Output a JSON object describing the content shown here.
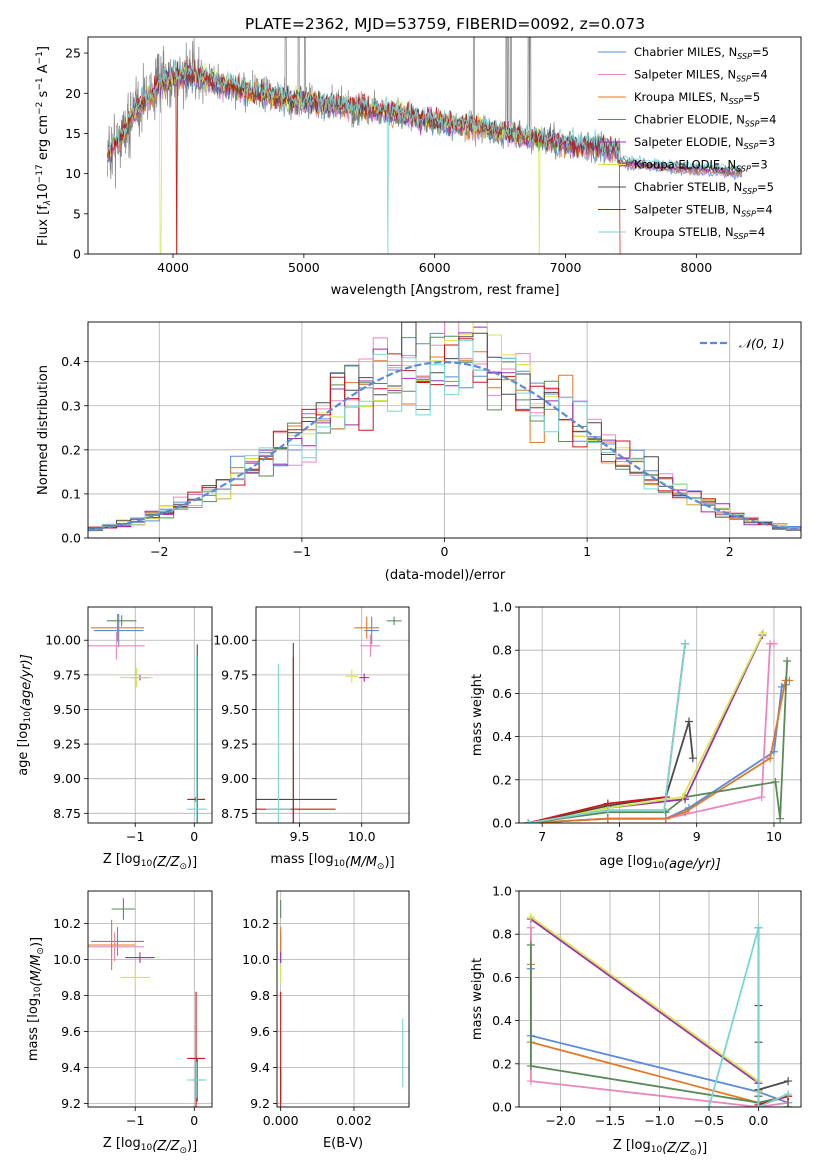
{
  "figure_title": "PLATE=2362, MJD=53759, FIBERID=0092, z=0.073",
  "colors": {
    "Chabrier MILES": "#5b8bd6",
    "Salpeter MILES": "#e888c0",
    "Kroupa MILES": "#e07828",
    "Chabrier ELODIE": "#5a8a5a",
    "Salpeter ELODIE": "#9a2fb0",
    "Kroupa ELODIE": "#d6e64a",
    "Chabrier STELIB": "#4a4a4a",
    "Salpeter STELIB": "#c81818",
    "Kroupa STELIB": "#7ad6d6",
    "data": "#808080",
    "normal": "#5b8bd6"
  },
  "chart_data": [
    {
      "id": "spectrum",
      "type": "line",
      "xlabel": "wavelength [Angstrom, rest frame]",
      "ylabel_main": "Flux [f",
      "ylabel_sub": "λ",
      "ylabel_rest": "10",
      "ylabel_exp": "−17",
      "ylabel_unit": " erg cm",
      "ylabel_unit_exp": "−2",
      "ylabel_s": " s",
      "ylabel_s_exp": "−1",
      "ylabel_A": " A",
      "ylabel_A_exp": "−1",
      "ylabel_end": "]",
      "xlim": [
        3350,
        8800
      ],
      "ylim": [
        0,
        27
      ],
      "xticks": [
        4000,
        5000,
        6000,
        7000,
        8000
      ],
      "yticks": [
        0,
        5,
        10,
        15,
        20,
        25
      ],
      "legend": [
        {
          "name": "Chabrier MILES",
          "nssp": "5"
        },
        {
          "name": "Salpeter MILES",
          "nssp": "4"
        },
        {
          "name": "Kroupa MILES",
          "nssp": "5"
        },
        {
          "name": "Chabrier ELODIE",
          "nssp": "4"
        },
        {
          "name": "Salpeter ELODIE",
          "nssp": "3"
        },
        {
          "name": "Kroupa ELODIE",
          "nssp": "3"
        },
        {
          "name": "Chabrier STELIB",
          "nssp": "5"
        },
        {
          "name": "Salpeter STELIB",
          "nssp": "4"
        },
        {
          "name": "Kroupa STELIB",
          "nssp": "4"
        }
      ],
      "legend_nssp_label": "N",
      "legend_nssp_sub": "SSP",
      "legend_location": "top-right",
      "continuum_x": [
        3500,
        3600,
        3700,
        3800,
        3900,
        4000,
        4100,
        4200,
        4300,
        4400,
        4500,
        4700,
        4900,
        5100,
        5300,
        5500,
        5700,
        5900,
        6100,
        6300,
        6500,
        6700,
        6900,
        7100,
        7300,
        7500,
        7700,
        7900,
        8100,
        8300
      ],
      "continuum_y": [
        12.5,
        14.5,
        17.5,
        19.5,
        21,
        22,
        22.3,
        22,
        21.5,
        21,
        20.5,
        19.8,
        19,
        18.8,
        18.3,
        18,
        17.5,
        16.8,
        16.2,
        15.8,
        15.2,
        14.5,
        14,
        13.5,
        13.2,
        12.8,
        12.5,
        12.2,
        12,
        11.8
      ],
      "data_x_range": [
        3500,
        7420
      ],
      "model_x_range": [
        3500,
        8350
      ],
      "dropouts": [
        {
          "series": "Kroupa ELODIE",
          "x": 3905
        },
        {
          "series": "Salpeter STELIB",
          "x": 4030
        },
        {
          "series": "Kroupa MILES",
          "x": 4030
        },
        {
          "series": "Kroupa STELIB",
          "x": 5640
        },
        {
          "series": "Kroupa ELODIE",
          "x": 6800
        },
        {
          "series": "Salpeter STELIB",
          "x": 7420
        }
      ],
      "emission_lines": [
        4861,
        4959,
        5007,
        6300,
        6548,
        6563,
        6583,
        6717,
        6731
      ]
    },
    {
      "id": "residuals",
      "type": "line",
      "xlabel": "(data-model)/error",
      "ylabel": "Normed distribution",
      "xlim": [
        -2.5,
        2.5
      ],
      "ylim": [
        0,
        0.49
      ],
      "xticks": [
        -2,
        -1,
        0,
        1,
        2
      ],
      "yticks": [
        0.0,
        0.1,
        0.2,
        0.3,
        0.4
      ],
      "bin_width": 0.1,
      "legend_label": "𝒩(0, 1)",
      "legend_location": "top-right",
      "normal": {
        "mean": 0,
        "sigma": 1
      }
    },
    {
      "id": "age_vs_Z",
      "type": "scatter",
      "xlabel": "Z [log",
      "xlabel_sub": "10",
      "xlabel_rest": "(Z/Z",
      "xlabel_odot": "⊙",
      "xlabel_end": ")]",
      "ylabel": "age  [log",
      "ylabel_sub": "10",
      "ylabel_rest": "(age/yr)]",
      "xlim": [
        -1.8,
        0.3
      ],
      "ylim": [
        8.68,
        10.24
      ],
      "xticks": [
        -1,
        0
      ],
      "yticks": [
        8.75,
        9.0,
        9.25,
        9.5,
        9.75,
        10.0
      ],
      "points": [
        {
          "series": "Chabrier MILES",
          "x": -1.28,
          "y": 10.07,
          "xerr": 0.42,
          "yerr": 0.12
        },
        {
          "series": "Salpeter MILES",
          "x": -1.32,
          "y": 9.96,
          "xerr": 0.48,
          "yerr": 0.1
        },
        {
          "series": "Kroupa MILES",
          "x": -1.3,
          "y": 10.09,
          "xerr": 0.45,
          "yerr": 0.1
        },
        {
          "series": "Chabrier ELODIE",
          "x": -1.23,
          "y": 10.14,
          "xerr": 0.25,
          "yerr": 0.04
        },
        {
          "series": "Salpeter ELODIE",
          "x": -0.92,
          "y": 9.73,
          "xerr": 0.15,
          "yerr": 0.02
        },
        {
          "series": "Kroupa ELODIE",
          "x": -0.98,
          "y": 9.73,
          "xerr": 0.28,
          "yerr": 0.07
        },
        {
          "series": "Chabrier STELIB",
          "x": 0.05,
          "y": 8.85,
          "xerr": 0.13,
          "yerr": 1.12
        },
        {
          "series": "Salpeter STELIB",
          "x": 0.03,
          "y": 8.85,
          "xerr": 0.15,
          "yerr": 0.02
        },
        {
          "series": "Kroupa STELIB",
          "x": 0.04,
          "y": 8.78,
          "xerr": 0.17,
          "yerr": 1.1
        }
      ]
    },
    {
      "id": "age_vs_mass",
      "type": "scatter",
      "xlabel": "mass [log",
      "xlabel_sub": "10",
      "xlabel_rest": "(M/M",
      "xlabel_odot": "⊙",
      "xlabel_end": ")]",
      "xlim": [
        9.15,
        10.38
      ],
      "ylim": [
        8.68,
        10.24
      ],
      "xticks": [
        9.5,
        10.0
      ],
      "yticks": [
        8.75,
        9.0,
        9.25,
        9.5,
        9.75,
        10.0
      ],
      "points": [
        {
          "series": "Chabrier MILES",
          "x": 10.08,
          "y": 10.07,
          "xerr": 0.06,
          "yerr": 0.1
        },
        {
          "series": "Salpeter MILES",
          "x": 10.07,
          "y": 9.96,
          "xerr": 0.08,
          "yerr": 0.08
        },
        {
          "series": "Kroupa MILES",
          "x": 10.04,
          "y": 10.09,
          "xerr": 0.1,
          "yerr": 0.08
        },
        {
          "series": "Chabrier ELODIE",
          "x": 10.26,
          "y": 10.14,
          "xerr": 0.06,
          "yerr": 0.03
        },
        {
          "series": "Salpeter ELODIE",
          "x": 10.02,
          "y": 9.73,
          "xerr": 0.04,
          "yerr": 0.03
        },
        {
          "series": "Kroupa ELODIE",
          "x": 9.92,
          "y": 9.74,
          "xerr": 0.05,
          "yerr": 0.05
        },
        {
          "series": "Chabrier STELIB",
          "x": 9.45,
          "y": 8.85,
          "xerr": 0.35,
          "yerr": 1.13
        },
        {
          "series": "Salpeter STELIB",
          "x": 9.45,
          "y": 8.78,
          "xerr": 0.34,
          "yerr": 1.1
        },
        {
          "series": "Kroupa STELIB",
          "x": 9.33,
          "y": 8.78,
          "xerr": 0.1,
          "yerr": 1.05
        }
      ]
    },
    {
      "id": "weight_vs_age",
      "type": "line",
      "xlabel": "age  [log",
      "xlabel_sub": "10",
      "xlabel_rest": "(age/yr)]",
      "ylabel": "mass weight",
      "xlim": [
        6.7,
        10.35
      ],
      "ylim": [
        0,
        1.0
      ],
      "xticks": [
        7,
        8,
        9,
        10
      ],
      "yticks": [
        0.0,
        0.2,
        0.4,
        0.6,
        0.8,
        1.0
      ],
      "series": [
        {
          "name": "Chabrier MILES",
          "x": [
            6.82,
            7.85,
            8.6,
            8.9,
            10.0,
            10.1,
            10.15
          ],
          "y": [
            0.0,
            0.02,
            0.02,
            0.07,
            0.33,
            0.63,
            0.64
          ]
        },
        {
          "name": "Salpeter MILES",
          "x": [
            6.82,
            7.85,
            8.6,
            9.84,
            9.95,
            10.0
          ],
          "y": [
            0.0,
            0.02,
            0.02,
            0.12,
            0.83,
            0.83
          ]
        },
        {
          "name": "Kroupa MILES",
          "x": [
            6.82,
            7.85,
            8.6,
            8.85,
            9.95,
            10.15,
            10.2
          ],
          "y": [
            0.0,
            0.02,
            0.02,
            0.05,
            0.3,
            0.66,
            0.66
          ]
        },
        {
          "name": "Chabrier ELODIE",
          "x": [
            6.82,
            7.85,
            8.6,
            8.85,
            10.02,
            10.08,
            10.17
          ],
          "y": [
            0.0,
            0.05,
            0.05,
            0.12,
            0.19,
            0.02,
            0.75
          ]
        },
        {
          "name": "Salpeter ELODIE",
          "x": [
            7.85,
            8.85,
            9.85
          ],
          "y": [
            0.07,
            0.11,
            0.87
          ]
        },
        {
          "name": "Kroupa ELODIE",
          "x": [
            6.82,
            7.85,
            8.82,
            9.86
          ],
          "y": [
            0.0,
            0.07,
            0.12,
            0.88
          ]
        },
        {
          "name": "Chabrier STELIB",
          "x": [
            6.82,
            7.85,
            8.6,
            8.9,
            8.95
          ],
          "y": [
            0.0,
            0.08,
            0.12,
            0.47,
            0.3
          ]
        },
        {
          "name": "Salpeter STELIB",
          "x": [
            6.82,
            7.85,
            8.6,
            8.85
          ],
          "y": [
            0.0,
            0.09,
            0.12,
            0.83
          ]
        },
        {
          "name": "Kroupa STELIB",
          "x": [
            6.82,
            7.85,
            8.58,
            8.85
          ],
          "y": [
            0.0,
            0.06,
            0.06,
            0.83
          ]
        }
      ]
    },
    {
      "id": "mass_vs_Z",
      "type": "scatter",
      "xlabel": "Z [log",
      "xlabel_sub": "10",
      "xlabel_rest": "(Z/Z",
      "xlabel_odot": "⊙",
      "xlabel_end": ")]",
      "ylabel": "mass [log",
      "ylabel_sub": "10",
      "ylabel_rest": "(M/M",
      "ylabel_odot": "⊙",
      "ylabel_end": ")]",
      "xlim": [
        -1.8,
        0.3
      ],
      "ylim": [
        9.18,
        10.38
      ],
      "xticks": [
        -1,
        0
      ],
      "yticks": [
        9.2,
        9.4,
        9.6,
        9.8,
        10.0,
        10.2
      ],
      "points": [
        {
          "series": "Chabrier MILES",
          "x": -1.3,
          "y": 10.1,
          "xerr": 0.45,
          "yerr": 0.08
        },
        {
          "series": "Salpeter MILES",
          "x": -1.35,
          "y": 10.07,
          "xerr": 0.5,
          "yerr": 0.08
        },
        {
          "series": "Kroupa MILES",
          "x": -1.4,
          "y": 10.08,
          "xerr": 0.4,
          "yerr": 0.14
        },
        {
          "series": "Chabrier ELODIE",
          "x": -1.2,
          "y": 10.28,
          "xerr": 0.2,
          "yerr": 0.06
        },
        {
          "series": "Salpeter ELODIE",
          "x": -0.92,
          "y": 10.01,
          "xerr": 0.25,
          "yerr": 0.03
        },
        {
          "series": "Kroupa ELODIE",
          "x": -1.0,
          "y": 9.9,
          "xerr": 0.25,
          "yerr": 0.05
        },
        {
          "series": "Chabrier STELIB",
          "x": 0.05,
          "y": 9.33,
          "xerr": 0.13,
          "yerr": 0.12
        },
        {
          "series": "Salpeter STELIB",
          "x": 0.03,
          "y": 9.45,
          "xerr": 0.15,
          "yerr": 0.37
        },
        {
          "series": "Kroupa STELIB",
          "x": 0.04,
          "y": 9.33,
          "xerr": 0.17,
          "yerr": 0.1
        }
      ]
    },
    {
      "id": "mass_vs_ebv",
      "type": "scatter",
      "xlabel": "E(B-V)",
      "xlim": [
        -0.0001,
        0.0035
      ],
      "ylim": [
        9.18,
        10.38
      ],
      "xticks": [
        0.0,
        0.002
      ],
      "xtick_labels": [
        "0.000",
        "0.002"
      ],
      "yticks": [
        9.2,
        9.4,
        9.6,
        9.8,
        10.0,
        10.2
      ],
      "points": [
        {
          "series": "Chabrier MILES",
          "x": 0.0,
          "y": 10.1,
          "xerr": 0,
          "yerr": 0.05
        },
        {
          "series": "Salpeter MILES",
          "x": 0.0,
          "y": 10.07,
          "xerr": 0,
          "yerr": 0.05
        },
        {
          "series": "Kroupa MILES",
          "x": 0.0,
          "y": 10.08,
          "xerr": 0,
          "yerr": 0.1
        },
        {
          "series": "Chabrier ELODIE",
          "x": 0.0,
          "y": 10.28,
          "xerr": 0,
          "yerr": 0.05
        },
        {
          "series": "Salpeter ELODIE",
          "x": 0.0,
          "y": 10.01,
          "xerr": 0,
          "yerr": 0.03
        },
        {
          "series": "Kroupa ELODIE",
          "x": 0.0,
          "y": 9.92,
          "xerr": 0,
          "yerr": 0.05
        },
        {
          "series": "Chabrier STELIB",
          "x": 0.0,
          "y": 9.3,
          "xerr": 0,
          "yerr": 0.1
        },
        {
          "series": "Salpeter STELIB",
          "x": 0.0,
          "y": 9.45,
          "xerr": 0,
          "yerr": 0.37
        },
        {
          "series": "Kroupa STELIB",
          "x": 0.00333,
          "y": 9.48,
          "xerr": 0,
          "yerr": 0.19
        }
      ]
    },
    {
      "id": "weight_vs_Z",
      "type": "line",
      "xlabel": "Z [log",
      "xlabel_sub": "10",
      "xlabel_rest": "(Z/Z",
      "xlabel_odot": "⊙",
      "xlabel_end": ")]",
      "ylabel": "mass weight",
      "xlim": [
        -2.42,
        0.43
      ],
      "ylim": [
        0,
        1.0
      ],
      "xticks": [
        -2.0,
        -1.5,
        -1.0,
        -0.5,
        0.0
      ],
      "xtick_labels": [
        "−2.0",
        "−1.5",
        "−1.0",
        "−0.5",
        "0.0"
      ],
      "yticks": [
        0.0,
        0.2,
        0.4,
        0.6,
        0.8,
        1.0
      ],
      "series": [
        {
          "name": "Chabrier MILES",
          "x": [
            -2.3,
            -2.3,
            0.0,
            0.3,
            0.3
          ],
          "y": [
            0.64,
            0.33,
            0.07,
            0.02,
            0.0
          ]
        },
        {
          "name": "Salpeter MILES",
          "x": [
            -2.3,
            -2.3,
            0.0,
            0.3
          ],
          "y": [
            0.83,
            0.12,
            0.0,
            0.02
          ]
        },
        {
          "name": "Kroupa MILES",
          "x": [
            -2.3,
            -2.3,
            0.0,
            0.3,
            0.3
          ],
          "y": [
            0.66,
            0.3,
            0.02,
            0.05,
            0.0
          ]
        },
        {
          "name": "Chabrier ELODIE",
          "x": [
            -2.3,
            -2.3,
            0.0,
            0.3,
            0.3
          ],
          "y": [
            0.75,
            0.19,
            0.02,
            0.05,
            0.0
          ]
        },
        {
          "name": "Salpeter ELODIE",
          "x": [
            -2.3,
            0.0,
            0.0
          ],
          "y": [
            0.87,
            0.11,
            0.07
          ]
        },
        {
          "name": "Kroupa ELODIE",
          "x": [
            -2.3,
            0.0,
            0.0
          ],
          "y": [
            0.88,
            0.12,
            0.07
          ]
        },
        {
          "name": "Chabrier STELIB",
          "x": [
            0.0,
            0.0,
            0.0,
            0.0,
            0.3
          ],
          "y": [
            0.47,
            0.3,
            0.05,
            0.08,
            0.12
          ]
        },
        {
          "name": "Salpeter STELIB",
          "x": [
            0.0,
            0.0,
            0.3
          ],
          "y": [
            0.83,
            0.01,
            0.05
          ]
        },
        {
          "name": "Kroupa STELIB",
          "x": [
            -0.5,
            0.0,
            0.0,
            0.3
          ],
          "y": [
            0.0,
            0.83,
            0.0,
            0.06
          ]
        }
      ]
    }
  ]
}
